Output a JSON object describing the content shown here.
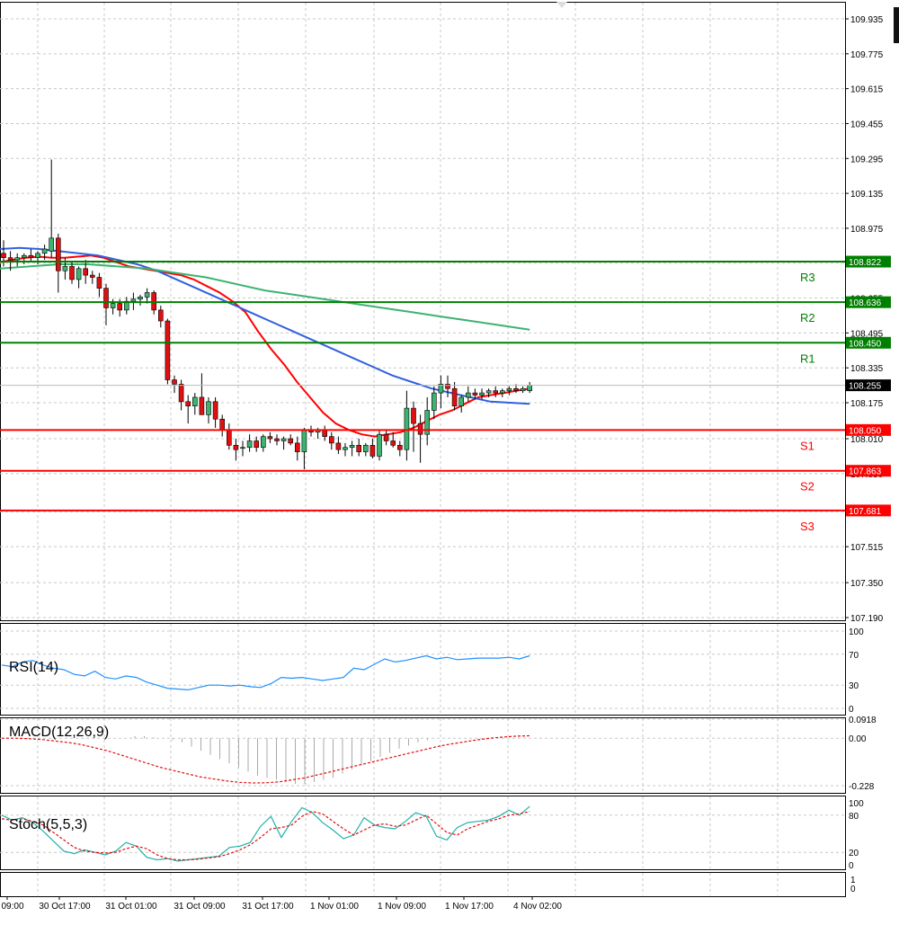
{
  "chart_data": [
    {
      "type": "candlestick",
      "panel": "price",
      "y_ticks": [
        "109.935",
        "109.775",
        "109.615",
        "109.455",
        "109.295",
        "109.135",
        "108.975",
        "108.815",
        "108.655",
        "108.495",
        "108.335",
        "108.175",
        "108.010",
        "107.850",
        "107.675",
        "107.515",
        "107.350",
        "107.190"
      ],
      "ylim": [
        107.19,
        109.935
      ],
      "x_ticks": [
        "09:00",
        "30 Oct 17:00",
        "31 Oct 01:00",
        "31 Oct 09:00",
        "31 Oct 17:00",
        "1 Nov 01:00",
        "1 Nov 09:00",
        "1 Nov 17:00",
        "4 Nov 02:00"
      ],
      "current_price": "108.255",
      "levels": [
        {
          "name": "R3",
          "value": 108.822,
          "value_label": "108.822",
          "color": "#008000"
        },
        {
          "name": "R2",
          "value": 108.636,
          "value_label": "108.636",
          "color": "#008000"
        },
        {
          "name": "R1",
          "value": 108.45,
          "value_label": "108.450",
          "color": "#008000"
        },
        {
          "name": "S1",
          "value": 108.05,
          "value_label": "108.050",
          "color": "#ff0000"
        },
        {
          "name": "S2",
          "value": 107.863,
          "value_label": "107.863",
          "color": "#ff0000"
        },
        {
          "name": "S3",
          "value": 107.681,
          "value_label": "107.681",
          "color": "#ff0000"
        }
      ],
      "candles": [
        [
          108.86,
          108.92,
          108.8,
          108.84
        ],
        [
          108.84,
          108.87,
          108.78,
          108.83
        ],
        [
          108.83,
          108.86,
          108.8,
          108.84
        ],
        [
          108.84,
          108.86,
          108.81,
          108.85
        ],
        [
          108.85,
          108.88,
          108.82,
          108.84
        ],
        [
          108.84,
          108.87,
          108.81,
          108.86
        ],
        [
          108.86,
          108.9,
          108.83,
          108.88
        ],
        [
          108.87,
          109.29,
          108.84,
          108.93
        ],
        [
          108.93,
          108.95,
          108.68,
          108.78
        ],
        [
          108.78,
          108.84,
          108.74,
          108.8
        ],
        [
          108.8,
          108.82,
          108.72,
          108.74
        ],
        [
          108.74,
          108.8,
          108.7,
          108.79
        ],
        [
          108.79,
          108.83,
          108.72,
          108.76
        ],
        [
          108.76,
          108.78,
          108.72,
          108.75
        ],
        [
          108.75,
          108.77,
          108.66,
          108.7
        ],
        [
          108.7,
          108.72,
          108.53,
          108.61
        ],
        [
          108.61,
          108.65,
          108.58,
          108.63
        ],
        [
          108.63,
          108.65,
          108.57,
          108.6
        ],
        [
          108.6,
          108.66,
          108.58,
          108.64
        ],
        [
          108.64,
          108.68,
          108.6,
          108.65
        ],
        [
          108.65,
          108.67,
          108.62,
          108.66
        ],
        [
          108.66,
          108.7,
          108.63,
          108.68
        ],
        [
          108.68,
          108.69,
          108.58,
          108.6
        ],
        [
          108.6,
          108.62,
          108.52,
          108.55
        ],
        [
          108.55,
          108.56,
          108.26,
          108.28
        ],
        [
          108.28,
          108.3,
          108.22,
          108.26
        ],
        [
          108.26,
          108.28,
          108.14,
          108.18
        ],
        [
          108.18,
          108.21,
          108.08,
          108.16
        ],
        [
          108.16,
          108.22,
          108.12,
          108.2
        ],
        [
          108.2,
          108.31,
          108.12,
          108.12
        ],
        [
          108.12,
          108.2,
          108.08,
          108.18
        ],
        [
          108.18,
          108.2,
          108.06,
          108.1
        ],
        [
          108.1,
          108.12,
          108.02,
          108.05
        ],
        [
          108.05,
          108.08,
          107.96,
          107.98
        ],
        [
          107.98,
          108.01,
          107.91,
          107.96
        ],
        [
          107.97,
          108.0,
          107.93,
          107.97
        ],
        [
          107.97,
          108.03,
          107.95,
          108.0
        ],
        [
          108.0,
          108.02,
          107.95,
          107.97
        ],
        [
          107.97,
          108.03,
          107.95,
          108.02
        ],
        [
          108.02,
          108.04,
          107.99,
          108.01
        ],
        [
          108.01,
          108.03,
          107.98,
          108.0
        ],
        [
          108.0,
          108.02,
          107.96,
          108.01
        ],
        [
          108.01,
          108.03,
          107.98,
          107.99
        ],
        [
          107.99,
          108.02,
          107.91,
          107.95
        ],
        [
          107.95,
          108.06,
          107.87,
          108.05
        ],
        [
          108.05,
          108.07,
          108.02,
          108.04
        ],
        [
          108.04,
          108.06,
          108.01,
          108.05
        ],
        [
          108.05,
          108.07,
          108.0,
          108.02
        ],
        [
          108.02,
          108.04,
          107.96,
          107.99
        ],
        [
          107.99,
          108.02,
          107.94,
          107.96
        ],
        [
          107.96,
          107.99,
          107.93,
          107.97
        ],
        [
          107.97,
          108.0,
          107.93,
          107.98
        ],
        [
          107.98,
          108.01,
          107.93,
          107.95
        ],
        [
          107.95,
          107.99,
          107.93,
          107.98
        ],
        [
          107.98,
          108.01,
          107.92,
          107.93
        ],
        [
          107.93,
          108.05,
          107.91,
          108.03
        ],
        [
          108.03,
          108.05,
          107.98,
          108.0
        ],
        [
          108.0,
          108.04,
          107.97,
          107.98
        ],
        [
          107.98,
          108.0,
          107.93,
          107.96
        ],
        [
          107.96,
          108.23,
          107.91,
          108.15
        ],
        [
          108.15,
          108.18,
          107.95,
          108.08
        ],
        [
          108.08,
          108.12,
          107.9,
          108.03
        ],
        [
          108.03,
          108.2,
          107.98,
          108.14
        ],
        [
          108.14,
          108.25,
          108.1,
          108.22
        ],
        [
          108.22,
          108.3,
          108.15,
          108.26
        ],
        [
          108.26,
          108.3,
          108.2,
          108.24
        ],
        [
          108.24,
          108.27,
          108.14,
          108.16
        ],
        [
          108.16,
          108.21,
          108.13,
          108.2
        ],
        [
          108.2,
          108.25,
          108.18,
          108.22
        ],
        [
          108.22,
          108.24,
          108.19,
          108.21
        ],
        [
          108.21,
          108.24,
          108.19,
          108.22
        ],
        [
          108.22,
          108.24,
          108.2,
          108.23
        ],
        [
          108.23,
          108.25,
          108.2,
          108.22
        ],
        [
          108.22,
          108.24,
          108.2,
          108.23
        ],
        [
          108.23,
          108.25,
          108.21,
          108.24
        ],
        [
          108.24,
          108.26,
          108.22,
          108.23
        ],
        [
          108.23,
          108.25,
          108.22,
          108.24
        ],
        [
          108.23,
          108.27,
          108.22,
          108.255
        ]
      ],
      "moving_averages": [
        {
          "color": "#ff0000",
          "values": [
            108.82,
            108.83,
            108.84,
            108.845,
            108.84,
            108.84,
            108.845,
            108.85,
            108.84,
            108.82,
            108.8,
            108.79,
            108.78,
            108.77,
            108.76,
            108.74,
            108.71,
            108.68,
            108.64,
            108.59,
            108.5,
            108.42,
            108.35,
            108.27,
            108.2,
            108.13,
            108.08,
            108.05,
            108.03,
            108.02,
            108.03,
            108.04,
            108.06,
            108.09,
            108.12,
            108.14,
            108.17,
            108.2,
            108.21,
            108.22,
            108.23,
            108.24
          ]
        },
        {
          "color": "#3060e0",
          "values": [
            108.88,
            108.885,
            108.88,
            108.87,
            108.86,
            108.85,
            108.83,
            108.81,
            108.78,
            108.74,
            108.7,
            108.66,
            108.62,
            108.58,
            108.54,
            108.5,
            108.46,
            108.42,
            108.38,
            108.34,
            108.3,
            108.27,
            108.24,
            108.22,
            108.2,
            108.18,
            108.175,
            108.17
          ]
        },
        {
          "color": "#3cb371",
          "values": [
            108.79,
            108.8,
            108.81,
            108.81,
            108.8,
            108.79,
            108.77,
            108.75,
            108.72,
            108.69,
            108.67,
            108.65,
            108.63,
            108.61,
            108.59,
            108.57,
            108.55,
            108.53,
            108.51
          ]
        }
      ]
    },
    {
      "type": "line",
      "panel": "indicator",
      "name": "RSI(14)",
      "ylim": [
        0,
        100
      ],
      "y_ticks": [
        "100",
        "70",
        "30",
        "0"
      ],
      "values": [
        56,
        54,
        60,
        62,
        56,
        52,
        50,
        44,
        42,
        48,
        40,
        38,
        42,
        40,
        34,
        30,
        26,
        25,
        24,
        27,
        30,
        30,
        29,
        30,
        28,
        27,
        32,
        40,
        39,
        40,
        38,
        36,
        38,
        40,
        52,
        50,
        57,
        64,
        60,
        62,
        65,
        68,
        64,
        66,
        63,
        64,
        65,
        65,
        65,
        66,
        64,
        68
      ]
    },
    {
      "type": "bar",
      "panel": "indicator",
      "name": "MACD(12,26,9)",
      "ylim": [
        -0.228,
        0.0918
      ],
      "y_ticks": [
        "0.0918",
        "0.00",
        "-0.228"
      ],
      "histogram": [
        0.01,
        0.01,
        0.005,
        0.0,
        -0.01,
        -0.02,
        -0.04,
        -0.06,
        -0.08,
        -0.1,
        -0.12,
        -0.14,
        -0.16,
        -0.18,
        -0.19,
        -0.2,
        -0.21,
        -0.22,
        -0.22,
        -0.21,
        -0.2,
        -0.19,
        -0.17,
        -0.15,
        -0.13,
        -0.11,
        -0.09,
        -0.07,
        -0.05,
        -0.035,
        -0.02,
        -0.01,
        0.0
      ],
      "signal": [
        0.0,
        0.0,
        -0.002,
        -0.006,
        -0.013,
        -0.02,
        -0.03,
        -0.045,
        -0.06,
        -0.08,
        -0.1,
        -0.12,
        -0.14,
        -0.155,
        -0.17,
        -0.185,
        -0.195,
        -0.205,
        -0.212,
        -0.215,
        -0.214,
        -0.21,
        -0.2,
        -0.19,
        -0.175,
        -0.16,
        -0.145,
        -0.13,
        -0.115,
        -0.1,
        -0.085,
        -0.07,
        -0.055,
        -0.04,
        -0.028,
        -0.018,
        -0.008,
        0.0,
        0.006,
        0.01,
        0.012
      ]
    },
    {
      "type": "line",
      "panel": "indicator",
      "name": "Stoch(5,5,3)",
      "ylim": [
        0,
        100
      ],
      "y_ticks": [
        "100",
        "80",
        "20",
        "0"
      ],
      "main": [
        80,
        72,
        76,
        68,
        54,
        38,
        22,
        18,
        24,
        20,
        16,
        22,
        36,
        30,
        12,
        8,
        10,
        6,
        8,
        10,
        12,
        14,
        28,
        30,
        36,
        62,
        78,
        44,
        70,
        92,
        84,
        68,
        56,
        42,
        48,
        76,
        64,
        60,
        58,
        70,
        84,
        78,
        46,
        40,
        60,
        68,
        70,
        72,
        78,
        88,
        80,
        94
      ],
      "signal": [
        74,
        72,
        74,
        70,
        64,
        52,
        40,
        28,
        22,
        20,
        19,
        20,
        26,
        30,
        26,
        16,
        10,
        8,
        8,
        9,
        11,
        13,
        18,
        24,
        32,
        44,
        58,
        60,
        64,
        78,
        86,
        82,
        70,
        58,
        48,
        56,
        64,
        66,
        62,
        64,
        72,
        80,
        66,
        52,
        48,
        58,
        64,
        70,
        74,
        80,
        82,
        86
      ]
    }
  ],
  "labels": {
    "rsi": "RSI(14)",
    "macd": "MACD(12,26,9)",
    "stoch": "Stoch(5,5,3)",
    "bottom_axis": [
      "1",
      "0"
    ]
  }
}
